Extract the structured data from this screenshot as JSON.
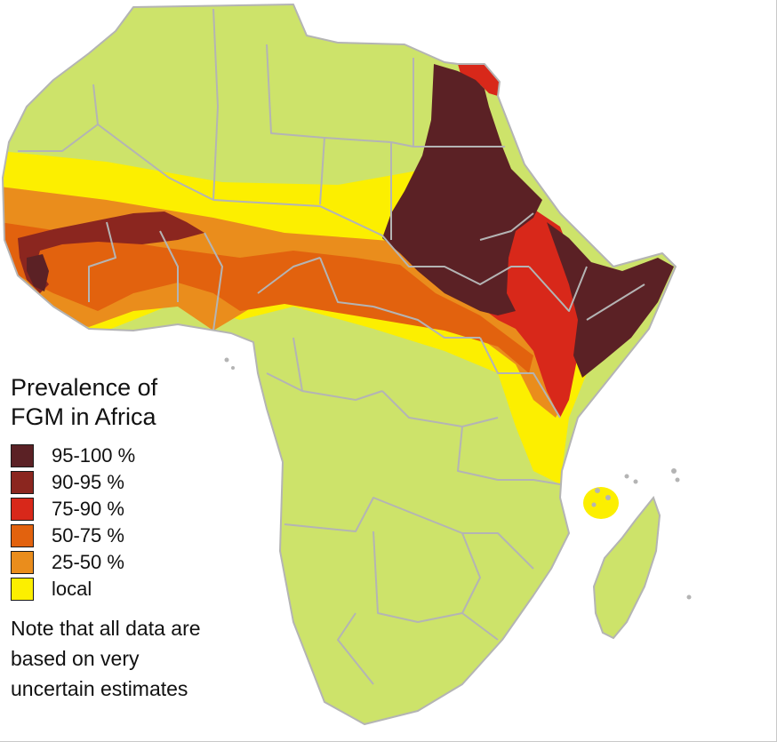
{
  "map": {
    "colors": {
      "background": "#ffffff",
      "land": "#cde36a",
      "border": "#b4b4b4"
    },
    "regions": [
      {
        "name": "local-band",
        "category": "local",
        "color": "#fcef00"
      },
      {
        "name": "25-50-band",
        "category": "25-50 %",
        "color": "#ea8d1c"
      },
      {
        "name": "50-75-band",
        "category": "50-75 %",
        "color": "#e2620e"
      },
      {
        "name": "75-90-band",
        "category": "75-90 %",
        "color": "#d8281a"
      },
      {
        "name": "90-95-band",
        "category": "90-95 %",
        "color": "#8b261f"
      },
      {
        "name": "95-100-band",
        "category": "95-100 %",
        "color": "#5b2125"
      }
    ]
  },
  "legend": {
    "title": "Prevalence of\nFGM in Africa",
    "items": [
      {
        "label": "95-100 %",
        "color": "#5b2125"
      },
      {
        "label": "90-95 %",
        "color": "#8b261f"
      },
      {
        "label": "75-90 %",
        "color": "#d8281a"
      },
      {
        "label": "50-75 %",
        "color": "#e2620e"
      },
      {
        "label": "25-50 %",
        "color": "#ea8d1c"
      },
      {
        "label": "local",
        "color": "#fcef00"
      }
    ],
    "note": "Note that all data are\nbased on very\nuncertain estimates"
  }
}
